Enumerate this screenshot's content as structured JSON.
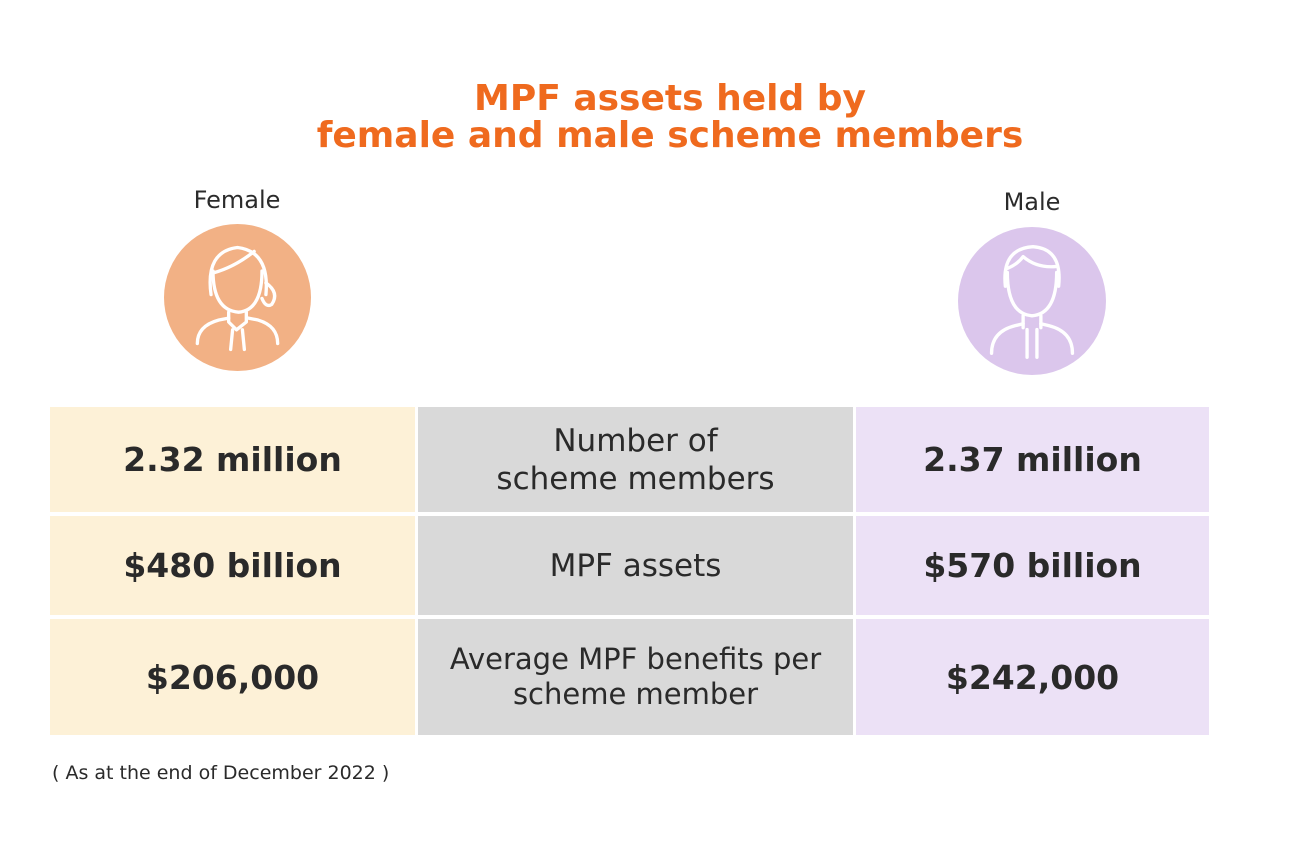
{
  "title_line1": "MPF assets held by",
  "title_line2": "female and male scheme members",
  "colors": {
    "title": "#ef6a1e",
    "female_avatar": "#f2b185",
    "male_avatar": "#dbc6ec",
    "female_cells": "#fdf1d7",
    "middle_cells": "#d9d9d9",
    "male_cells": "#ece1f6"
  },
  "female": {
    "label": "Female",
    "icon": "female-person-icon"
  },
  "male": {
    "label": "Male",
    "icon": "male-person-icon"
  },
  "chart_data": {
    "type": "table",
    "columns": [
      "Female",
      "",
      "Male"
    ],
    "rows": [
      {
        "female": "2.32 million",
        "metric": "Number of\nscheme members",
        "male": "2.37 million"
      },
      {
        "female": "$480 billion",
        "metric": "MPF assets",
        "male": "$570 billion"
      },
      {
        "female": "$206,000",
        "metric": "Average MPF benefits per\nscheme member",
        "male": "$242,000"
      }
    ]
  },
  "note": "( As at the end of December 2022 )"
}
